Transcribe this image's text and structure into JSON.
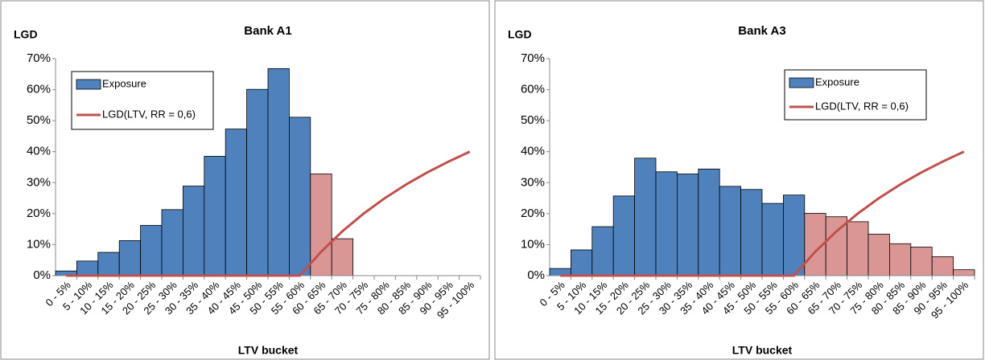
{
  "chart_data": [
    {
      "type": "bar",
      "title": "Bank A1",
      "y_label": "LGD",
      "x_label": "LTV bucket",
      "legend": "upper left",
      "categories": [
        "0 - 5%",
        "5 - 10%",
        "10 - 15%",
        "15 - 20%",
        "20 - 25%",
        "25 - 30%",
        "30 - 35%",
        "35 - 40%",
        "40 - 45%",
        "45 - 50%",
        "50 - 55%",
        "55 - 60%",
        "60 - 65%",
        "65 - 70%",
        "70 - 75%",
        "75 - 80%",
        "80 - 85%",
        "85 - 90%",
        "90 - 95%",
        "95 - 100%"
      ],
      "ylim": [
        0,
        70
      ],
      "yticks": [
        {
          "value": 0,
          "label": "0%"
        },
        {
          "value": 10,
          "label": "10%"
        },
        {
          "value": 20,
          "label": "20%"
        },
        {
          "value": 30,
          "label": "30%"
        },
        {
          "value": 40,
          "label": "40%"
        },
        {
          "value": 50,
          "label": "50%"
        },
        {
          "value": 60,
          "label": "60%"
        },
        {
          "value": 70,
          "label": "70%"
        }
      ],
      "series": [
        {
          "name": "Exposure",
          "type": "bar",
          "color": "#4f81bd",
          "colors": [
            "#4f81bd",
            "#4f81bd",
            "#4f81bd",
            "#4f81bd",
            "#4f81bd",
            "#4f81bd",
            "#4f81bd",
            "#4f81bd",
            "#4f81bd",
            "#4f81bd",
            "#4f81bd",
            "#4f81bd",
            "#d99694",
            "#d99694",
            "#d99694",
            "#d99694",
            "#d99694",
            "#d99694",
            "#d99694",
            "#d99694"
          ],
          "values": [
            1.5,
            4.7,
            7.5,
            11.3,
            16.2,
            21.3,
            28.9,
            38.5,
            47.3,
            60.1,
            66.8,
            51.1,
            32.8,
            11.9,
            0,
            0,
            0,
            0,
            0,
            0
          ]
        },
        {
          "name": "LGD(LTV, RR = 0,6)",
          "type": "line",
          "color": "#c0504d",
          "values": [
            0,
            0,
            0,
            0,
            0,
            0,
            0,
            0,
            0,
            0,
            0,
            0,
            7.7,
            14.3,
            20,
            25,
            29.4,
            33.3,
            36.8,
            40
          ]
        }
      ]
    },
    {
      "type": "bar",
      "title": "Bank A3",
      "y_label": "LGD",
      "x_label": "LTV bucket",
      "legend": "upper right",
      "categories": [
        "0 - 5%",
        "5 - 10%",
        "10 - 15%",
        "15 - 20%",
        "20 - 25%",
        "25 - 30%",
        "30 - 35%",
        "35 - 40%",
        "40 - 45%",
        "45 - 50%",
        "50 - 55%",
        "55 - 60%",
        "60 - 65%",
        "65 - 70%",
        "70 - 75%",
        "75 - 80%",
        "80 - 85%",
        "85 - 90%",
        "90 - 95%",
        "95 - 100%"
      ],
      "ylim": [
        0,
        70
      ],
      "yticks": [
        {
          "value": 0,
          "label": "0%"
        },
        {
          "value": 10,
          "label": "10%"
        },
        {
          "value": 20,
          "label": "20%"
        },
        {
          "value": 30,
          "label": "30%"
        },
        {
          "value": 40,
          "label": "40%"
        },
        {
          "value": 50,
          "label": "50%"
        },
        {
          "value": 60,
          "label": "60%"
        },
        {
          "value": 70,
          "label": "70%"
        }
      ],
      "series": [
        {
          "name": "Exposure",
          "type": "bar",
          "color": "#4f81bd",
          "colors": [
            "#4f81bd",
            "#4f81bd",
            "#4f81bd",
            "#4f81bd",
            "#4f81bd",
            "#4f81bd",
            "#4f81bd",
            "#4f81bd",
            "#4f81bd",
            "#4f81bd",
            "#4f81bd",
            "#4f81bd",
            "#d99694",
            "#d99694",
            "#d99694",
            "#d99694",
            "#d99694",
            "#d99694",
            "#d99694",
            "#d99694"
          ],
          "values": [
            2.3,
            8.3,
            15.8,
            25.7,
            37.9,
            33.5,
            32.8,
            34.4,
            28.8,
            27.8,
            23.3,
            26.0,
            20.1,
            19.0,
            17.4,
            13.4,
            10.3,
            9.2,
            6.1,
            1.9
          ]
        },
        {
          "name": "LGD(LTV, RR = 0,6)",
          "type": "line",
          "color": "#c0504d",
          "values": [
            0,
            0,
            0,
            0,
            0,
            0,
            0,
            0,
            0,
            0,
            0,
            0,
            7.7,
            14.3,
            20,
            25,
            29.4,
            33.3,
            36.8,
            40
          ]
        }
      ]
    }
  ]
}
